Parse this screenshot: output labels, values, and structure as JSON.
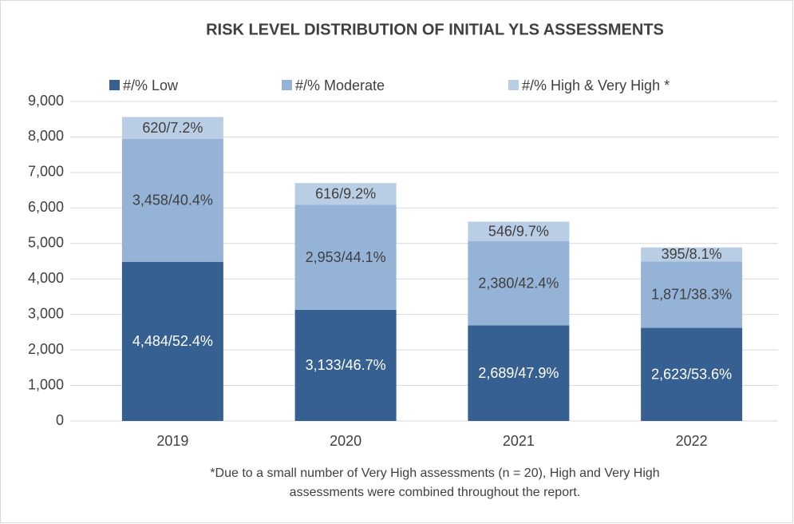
{
  "chart_data": {
    "type": "stacked_bar",
    "title": "RISK LEVEL DISTRIBUTION OF INITIAL YLS ASSESSMENTS",
    "categories": [
      "2019",
      "2020",
      "2021",
      "2022"
    ],
    "series": [
      {
        "name": "#/% Low",
        "color": "#376092",
        "values": [
          4484,
          3133,
          2689,
          2623
        ],
        "value_labels": [
          "4,484/52.4%",
          "3,133/46.7%",
          "2,689/47.9%",
          "2,623/53.6%"
        ]
      },
      {
        "name": "#/% Moderate",
        "color": "#95b3d7",
        "values": [
          3458,
          2953,
          2380,
          1871
        ],
        "value_labels": [
          "3,458/40.4%",
          "2,953/44.1%",
          "2,380/42.4%",
          "1,871/38.3%"
        ]
      },
      {
        "name": "#/% High & Very High *",
        "color": "#b9cde5",
        "values": [
          620,
          616,
          546,
          395
        ],
        "value_labels": [
          "620/7.2%",
          "616/9.2%",
          "546/9.7%",
          "395/8.1%"
        ]
      }
    ],
    "ylim": [
      0,
      9000
    ],
    "yticks": [
      0,
      {
        "value": 1000,
        "label": "1,000"
      },
      {
        "value": 2000,
        "label": "2,000"
      },
      {
        "value": 3000,
        "label": "3,000"
      },
      {
        "value": 4000,
        "label": "4,000"
      },
      {
        "value": 5000,
        "label": "5,000"
      },
      {
        "value": 6000,
        "label": "6,000"
      },
      {
        "value": 7000,
        "label": "7,000"
      },
      {
        "value": 8000,
        "label": "8,000"
      },
      {
        "value": 9000,
        "label": "9,000"
      }
    ],
    "grid": true,
    "legend": "top",
    "footnote": [
      "*Due to a small number of Very High assessments (n = 20), High and Very High",
      "assessments were combined throughout the report."
    ]
  }
}
